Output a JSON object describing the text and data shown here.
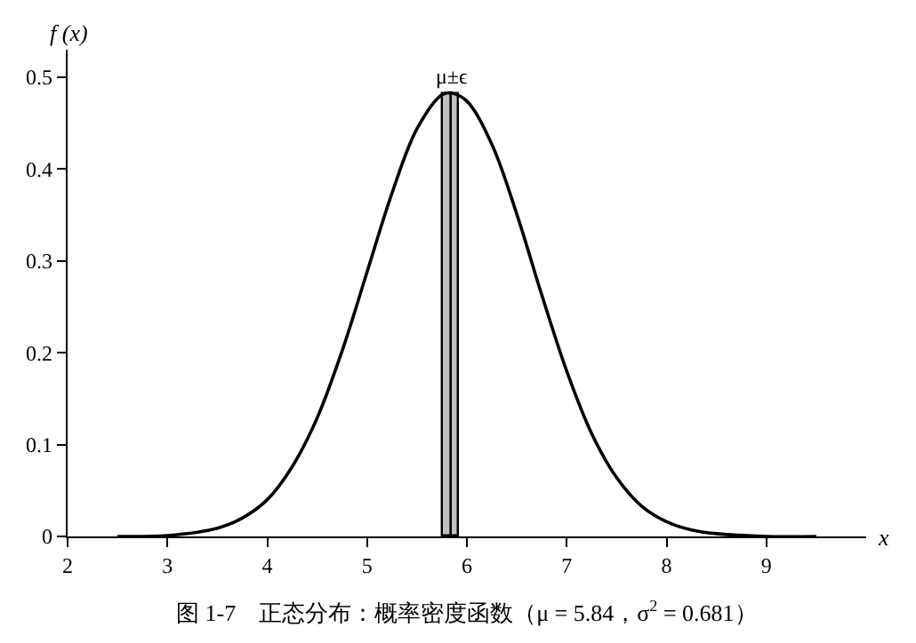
{
  "chart_data": {
    "type": "line",
    "title": "图 1-7　正态分布：概率密度函数（μ = 5.84，σ$^{2}$ = 0.681）",
    "xlabel": "x",
    "ylabel": "f (x)",
    "series": [
      {
        "type": "bar",
        "color": "#c0c0c0",
        "x": [
          5.8,
          5.88
        ],
        "values": [
          0.482,
          0.482
        ]
      },
      {
        "color": "#000000",
        "x": [
          2.5,
          3.0,
          3.5,
          3.75,
          4.0,
          4.25,
          4.5,
          4.75,
          5.0,
          5.25,
          5.5,
          5.75,
          5.84,
          6.0,
          6.25,
          6.5,
          6.75,
          7.0,
          7.25,
          7.5,
          7.75,
          8.0,
          8.25,
          8.5,
          9.0,
          9.5
        ],
        "values": [
          0.0,
          0.001,
          0.009,
          0.02,
          0.04,
          0.076,
          0.129,
          0.202,
          0.288,
          0.374,
          0.444,
          0.481,
          0.483,
          0.474,
          0.427,
          0.351,
          0.263,
          0.18,
          0.112,
          0.064,
          0.033,
          0.016,
          0.007,
          0.003,
          0.0,
          0.0
        ]
      }
    ],
    "annotations": [
      {
        "text": "μ±ϵ",
        "x": 5.84,
        "y": 0.483
      }
    ],
    "xlim": [
      2,
      10
    ],
    "xticks": [
      2,
      3,
      4,
      5,
      6,
      7,
      8,
      9
    ],
    "ylim": [
      0,
      0.53
    ],
    "yticks": [
      0,
      0.1,
      0.2,
      0.3,
      0.4,
      0.5
    ],
    "grid": false,
    "legend": false,
    "marker": "none",
    "line_style": "solid"
  }
}
